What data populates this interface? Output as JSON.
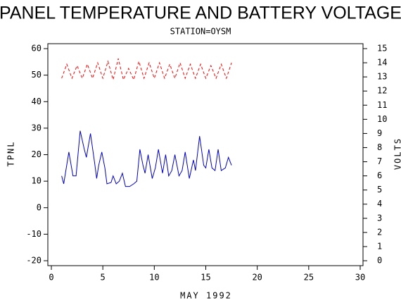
{
  "chart_data": {
    "type": "line",
    "title": "PANEL TEMPERATURE AND BATTERY VOLTAGE",
    "subtitle": "STATION=OYSM",
    "x_label": "MAY 1992",
    "y_label": "TPNL",
    "y2_label": "VOLTS",
    "xlim": [
      0,
      30
    ],
    "xticks": [
      0,
      5,
      10,
      15,
      20,
      25,
      30
    ],
    "ylim": [
      -20,
      60
    ],
    "yticks": [
      -20,
      -10,
      0,
      10,
      20,
      30,
      40,
      50,
      60
    ],
    "y2lim": [
      0,
      15
    ],
    "y2ticks": [
      0,
      1,
      2,
      3,
      4,
      5,
      6,
      7,
      8,
      9,
      10,
      11,
      12,
      13,
      14,
      15
    ],
    "series": [
      {
        "name": "TPNL",
        "color": "#0000cc",
        "x": [
          1,
          1.2,
          1.7,
          2.1,
          2.4,
          2.8,
          3.2,
          3.4,
          3.8,
          4.2,
          4.4,
          4.6,
          4.9,
          5.2,
          5.4,
          5.8,
          6.0,
          6.3,
          6.6,
          6.9,
          7.2,
          7.6,
          8.0,
          8.3,
          8.6,
          8.9,
          9.1,
          9.4,
          9.8,
          10.1,
          10.4,
          10.8,
          11.1,
          11.4,
          11.7,
          12.0,
          12.4,
          12.7,
          13.0,
          13.4,
          13.8,
          14.0,
          14.4,
          14.8,
          15.0,
          15.3,
          15.6,
          15.9,
          16.2,
          16.5,
          16.9,
          17.2,
          17.5
        ],
        "values": [
          12,
          9,
          21,
          12,
          12,
          29,
          22,
          19,
          28,
          17,
          11,
          16,
          21,
          15,
          9,
          9.5,
          12,
          9,
          10,
          13,
          8,
          8,
          9,
          10,
          22,
          16,
          13,
          20,
          11,
          15,
          22,
          13,
          20,
          12,
          14,
          20,
          12,
          14,
          21,
          11,
          18,
          14,
          27,
          16,
          15,
          22,
          15,
          14,
          22,
          14,
          15,
          19,
          16
        ]
      },
      {
        "name": "VOLTS",
        "color": "#ff0000",
        "axis": "y2",
        "dashed": true,
        "x": [
          1,
          1.5,
          2,
          2.5,
          3,
          3.5,
          4,
          4.5,
          5,
          5.5,
          6,
          6.5,
          7,
          7.5,
          8,
          8.5,
          9,
          9.5,
          10,
          10.5,
          11,
          11.5,
          12,
          12.5,
          13,
          13.5,
          14,
          14.5,
          15,
          15.5,
          16,
          16.5,
          17,
          17.5
        ],
        "values": [
          12.9,
          13.9,
          12.9,
          13.8,
          12.9,
          13.9,
          12.9,
          14.0,
          12.9,
          14.1,
          12.8,
          14.3,
          12.8,
          13.6,
          12.8,
          14.1,
          12.9,
          14.0,
          12.9,
          14.0,
          12.9,
          13.9,
          12.9,
          14.0,
          12.9,
          13.9,
          12.9,
          13.9,
          12.9,
          13.8,
          12.9,
          13.9,
          12.9,
          14.0
        ]
      }
    ]
  }
}
